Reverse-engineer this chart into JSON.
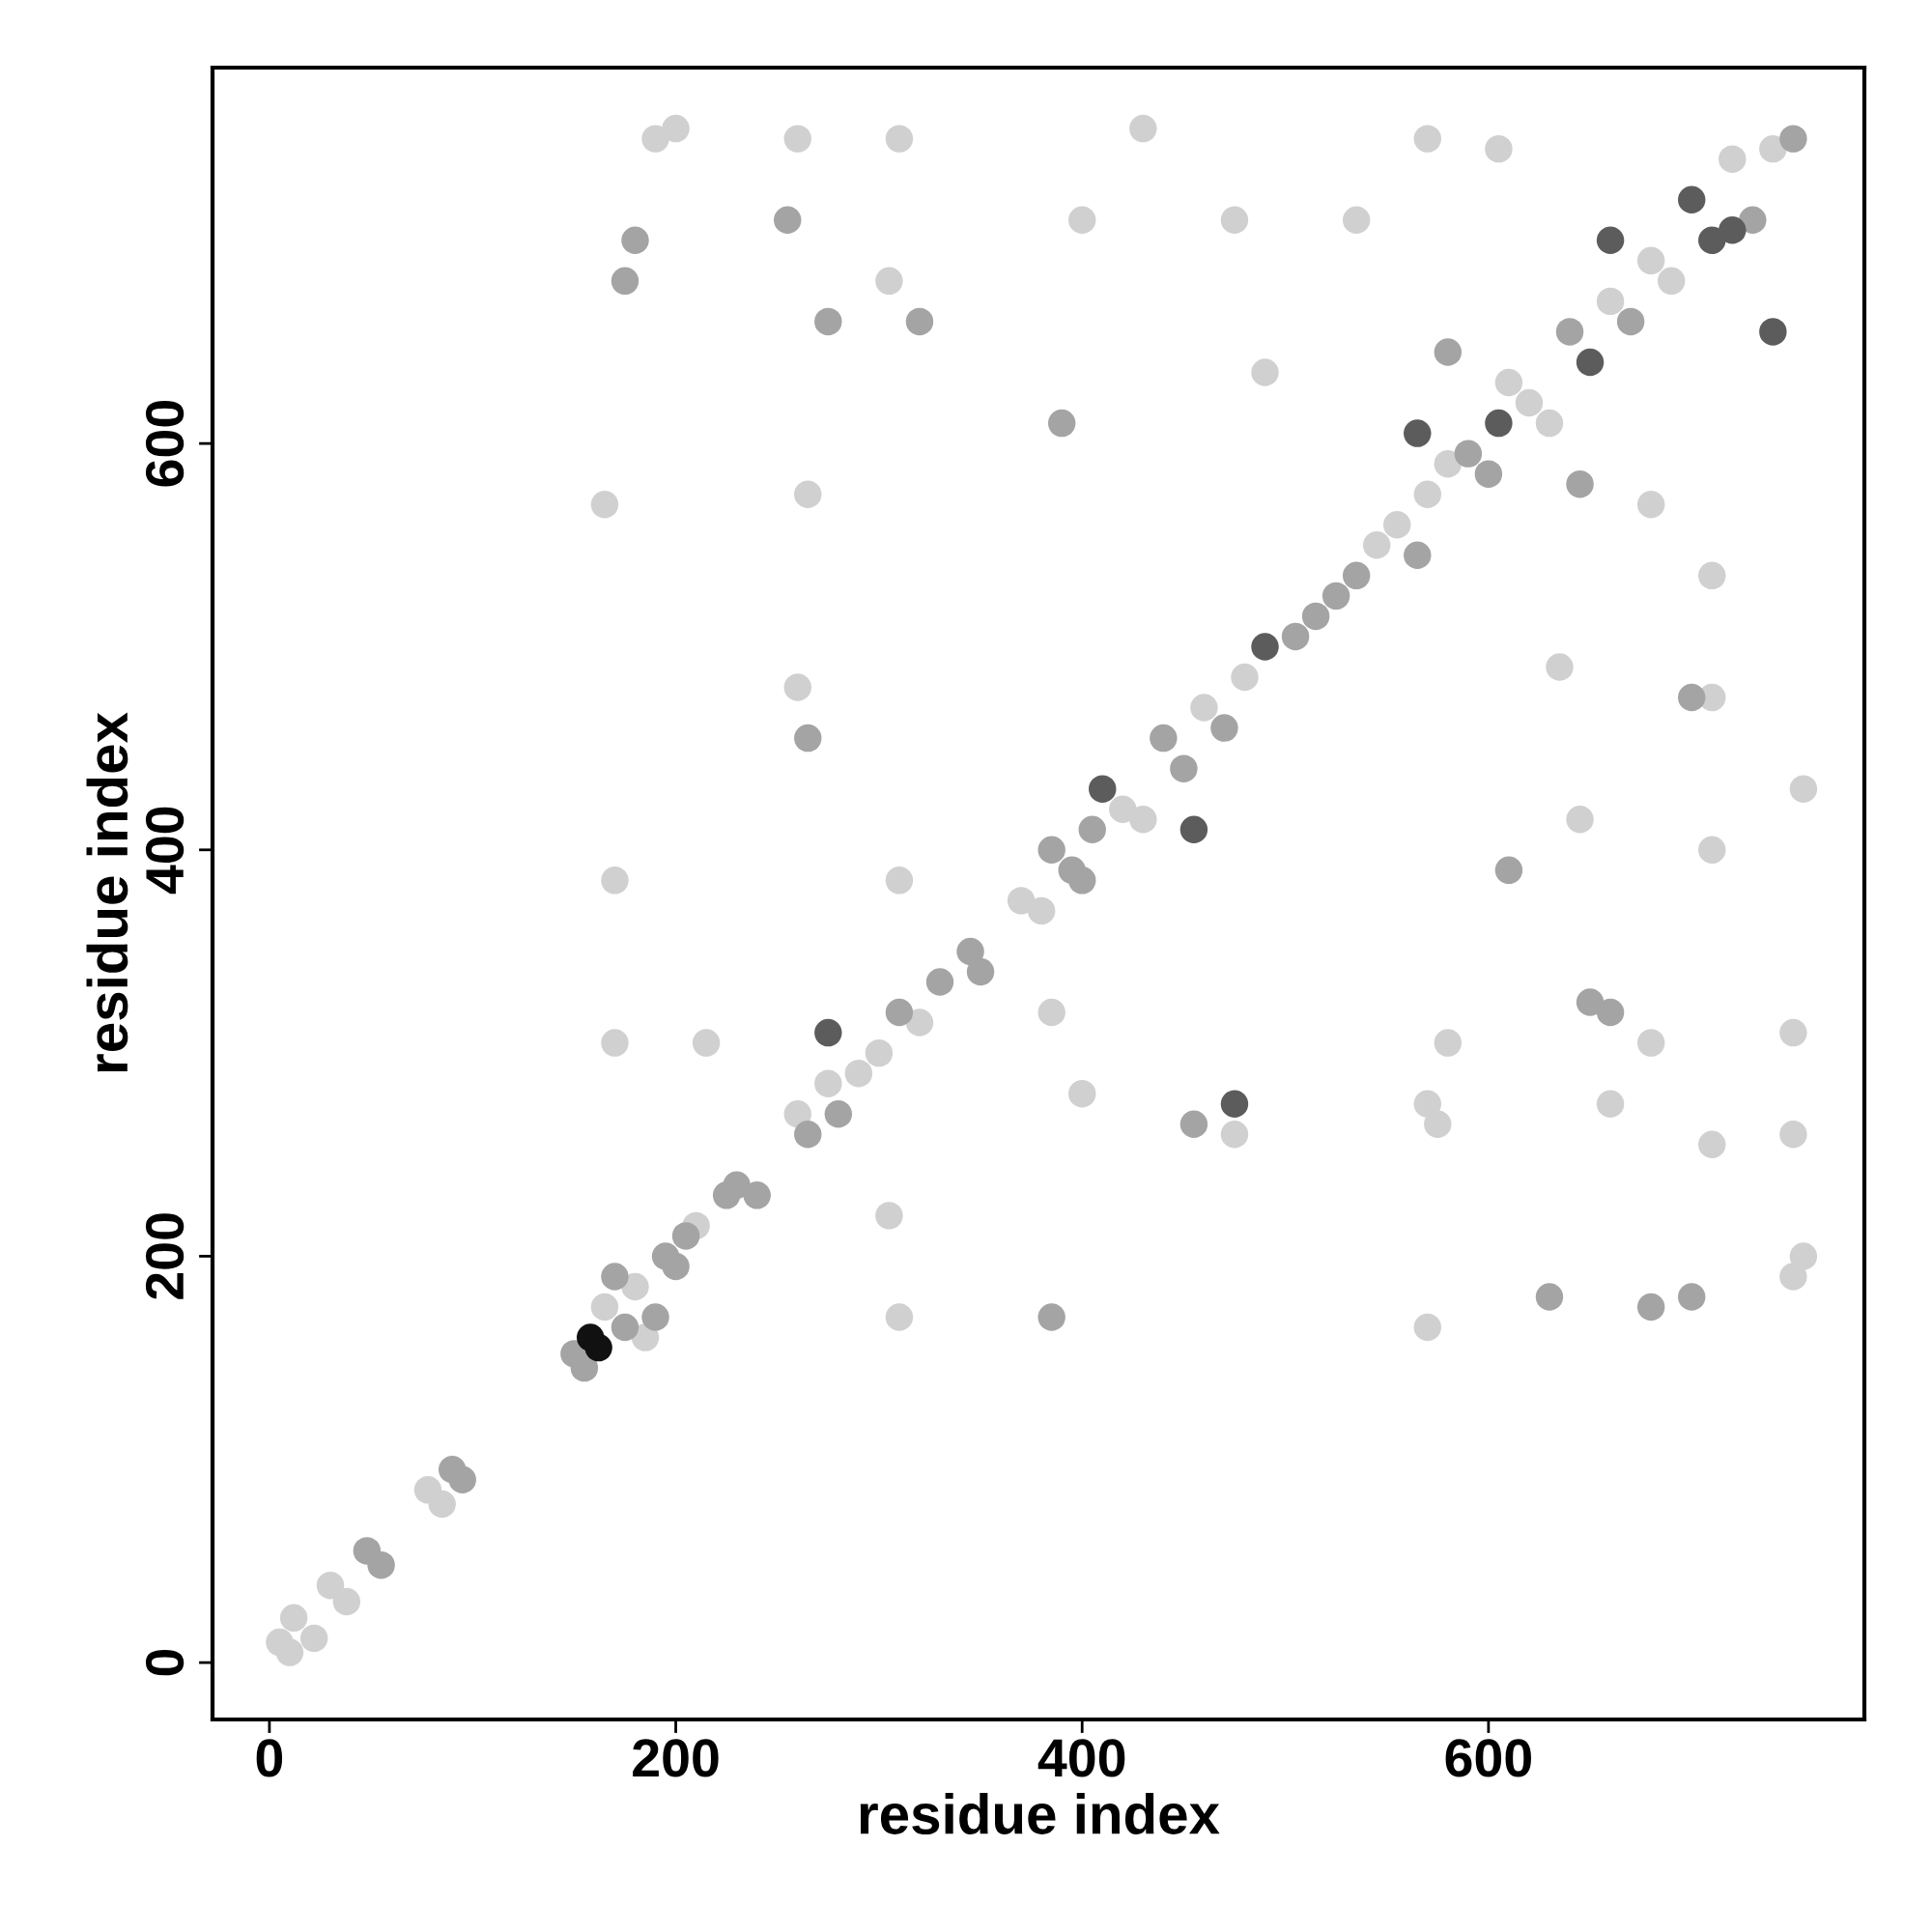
{
  "chart_data": {
    "type": "scatter",
    "xlabel": "residue index",
    "ylabel": "residue index",
    "xlim": [
      -28,
      785
    ],
    "ylim": [
      -28,
      785
    ],
    "xticks": [
      0,
      200,
      400,
      600
    ],
    "yticks": [
      0,
      200,
      400,
      600
    ],
    "grid": false,
    "legend": false,
    "marker": "circle",
    "series": [
      {
        "color": "#d0d0d0",
        "x": [
          5,
          10,
          12,
          22,
          30,
          38,
          78,
          85,
          165,
          180,
          185,
          210,
          260,
          275,
          290,
          300,
          320,
          370,
          380,
          420,
          430,
          460,
          480,
          545,
          555,
          570,
          580,
          610,
          620,
          630,
          660,
          680,
          690,
          720,
          740,
          190,
          200,
          260,
          305,
          310,
          165,
          265,
          400,
          430,
          475,
          490,
          535,
          570,
          605,
          750,
          755,
          750,
          570,
          680,
          710,
          750,
          660,
          680,
          575,
          710,
          755,
          710,
          635,
          710,
          260,
          170,
          215,
          305,
          310,
          170,
          310,
          385,
          400,
          475,
          580,
          645,
          570
        ],
        "values": [
          10,
          5,
          22,
          12,
          38,
          30,
          85,
          78,
          175,
          185,
          160,
          215,
          270,
          285,
          290,
          300,
          315,
          375,
          370,
          420,
          415,
          470,
          485,
          550,
          560,
          575,
          590,
          630,
          620,
          610,
          670,
          690,
          680,
          740,
          745,
          750,
          755,
          750,
          680,
          750,
          570,
          575,
          710,
          755,
          710,
          635,
          710,
          750,
          745,
          190,
          200,
          260,
          165,
          305,
          255,
          310,
          275,
          570,
          265,
          400,
          430,
          475,
          490,
          535,
          480,
          305,
          305,
          220,
          170,
          385,
          385,
          320,
          280,
          260,
          305,
          415,
          275
        ]
      },
      {
        "color": "#a4a4a4",
        "x": [
          48,
          55,
          90,
          95,
          150,
          155,
          170,
          175,
          190,
          195,
          200,
          205,
          225,
          230,
          240,
          265,
          280,
          310,
          330,
          345,
          350,
          385,
          395,
          400,
          405,
          440,
          450,
          470,
          505,
          515,
          525,
          535,
          565,
          590,
          600,
          640,
          670,
          730,
          750,
          175,
          180,
          255,
          275,
          320,
          390,
          580,
          680,
          700,
          660,
          645,
          265,
          385,
          455,
          650,
          700,
          630,
          610
        ],
        "values": [
          55,
          48,
          95,
          90,
          152,
          145,
          190,
          165,
          170,
          200,
          195,
          210,
          230,
          235,
          230,
          260,
          270,
          320,
          335,
          350,
          340,
          400,
          390,
          385,
          410,
          455,
          440,
          460,
          505,
          515,
          525,
          535,
          545,
          595,
          585,
          655,
          660,
          710,
          750,
          680,
          700,
          710,
          660,
          660,
          610,
          645,
          175,
          180,
          320,
          580,
          455,
          170,
          265,
          325,
          475,
          180,
          390
        ]
      },
      {
        "color": "#5c5c5c",
        "x": [
          410,
          455,
          490,
          565,
          605,
          650,
          660,
          700,
          710,
          720,
          740,
          275,
          475
        ],
        "values": [
          430,
          410,
          500,
          605,
          610,
          640,
          700,
          720,
          700,
          705,
          655,
          310,
          275
        ]
      },
      {
        "color": "#111111",
        "x": [
          158,
          162
        ],
        "values": [
          160,
          155
        ]
      }
    ]
  }
}
